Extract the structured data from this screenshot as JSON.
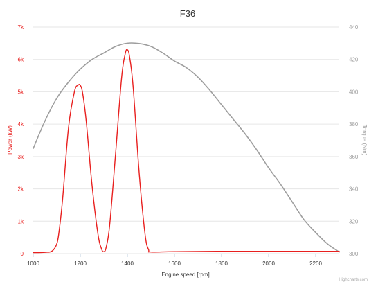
{
  "chart_data": {
    "type": "line",
    "title": "F36",
    "xlabel": "Engine speed [rpm]",
    "ylabel_left": "Power (kW)",
    "ylabel_right": "Torque (Nm)",
    "xlim": [
      1000,
      2300
    ],
    "ylim_left": [
      0,
      7000
    ],
    "ylim_right": [
      300,
      440
    ],
    "x_ticks": [
      1000,
      1200,
      1400,
      1600,
      1800,
      2000,
      2200
    ],
    "x_tick_labels": [
      "1000",
      "1200",
      "1400",
      "1600",
      "1800",
      "2000",
      "2200"
    ],
    "y_left_ticks": [
      0,
      1000,
      2000,
      3000,
      4000,
      5000,
      6000,
      7000
    ],
    "y_left_tick_labels": [
      "0",
      "1k",
      "2k",
      "3k",
      "4k",
      "5k",
      "6k",
      "7k"
    ],
    "y_right_ticks": [
      300,
      320,
      340,
      360,
      380,
      400,
      420,
      440
    ],
    "y_right_tick_labels": [
      "300",
      "320",
      "340",
      "360",
      "380",
      "400",
      "420",
      "440"
    ],
    "grid": true,
    "legend": "none",
    "series": [
      {
        "axis": "left",
        "color": "#e8201f",
        "x": [
          1000,
          1050,
          1080,
          1100,
          1110,
          1125,
          1150,
          1175,
          1190,
          1200,
          1210,
          1225,
          1250,
          1275,
          1290,
          1300,
          1310,
          1325,
          1350,
          1375,
          1390,
          1400,
          1410,
          1425,
          1450,
          1475,
          1490,
          1500,
          1600,
          1800,
          2000,
          2200,
          2300
        ],
        "y": [
          30,
          40,
          80,
          300,
          700,
          1700,
          3900,
          5000,
          5200,
          5200,
          4950,
          4100,
          2100,
          600,
          150,
          60,
          200,
          900,
          3100,
          5400,
          6150,
          6300,
          6050,
          5100,
          2500,
          600,
          120,
          50,
          60,
          70,
          70,
          70,
          70
        ]
      },
      {
        "axis": "right",
        "color": "#9e9e9e",
        "x": [
          1000,
          1050,
          1100,
          1150,
          1200,
          1250,
          1300,
          1350,
          1400,
          1450,
          1500,
          1550,
          1600,
          1650,
          1700,
          1750,
          1800,
          1850,
          1900,
          1950,
          2000,
          2050,
          2100,
          2150,
          2200,
          2250,
          2300
        ],
        "y": [
          365,
          382,
          396,
          406,
          414,
          420,
          424,
          428,
          430,
          429.8,
          428,
          424,
          419,
          415,
          409,
          401,
          392,
          383,
          374,
          364,
          353,
          343,
          332,
          321,
          313,
          306,
          301
        ]
      }
    ],
    "credits": "Highcharts.com"
  }
}
